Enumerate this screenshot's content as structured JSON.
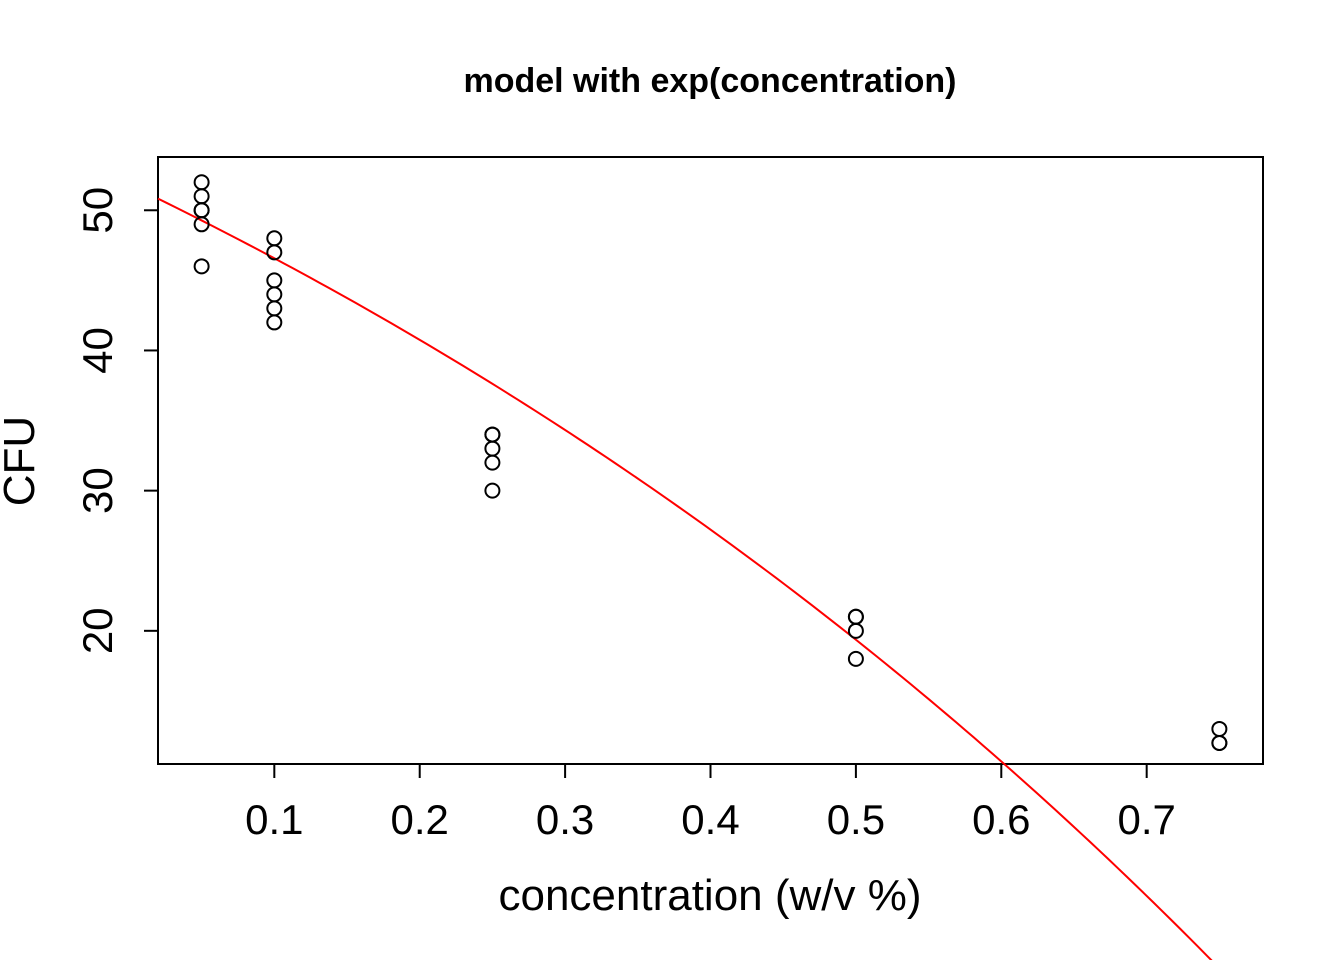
{
  "chart_data": {
    "type": "scatter",
    "title": "model with exp(concentration)",
    "xlabel": "concentration (w/v %)",
    "ylabel": "CFU",
    "xlim": [
      0.02,
      0.78
    ],
    "ylim": [
      10.5,
      53.8
    ],
    "x_ticks": [
      0.1,
      0.2,
      0.3,
      0.4,
      0.5,
      0.6,
      0.7
    ],
    "x_tick_labels": [
      "0.1",
      "0.2",
      "0.3",
      "0.4",
      "0.5",
      "0.6",
      "0.7"
    ],
    "y_ticks": [
      20,
      30,
      40,
      50
    ],
    "y_tick_labels": [
      "20",
      "30",
      "40",
      "50"
    ],
    "grid": false,
    "series": [
      {
        "type": "scatter",
        "color": "#000000",
        "points": [
          [
            0.05,
            52
          ],
          [
            0.05,
            51
          ],
          [
            0.05,
            50
          ],
          [
            0.05,
            50
          ],
          [
            0.05,
            49
          ],
          [
            0.05,
            46
          ],
          [
            0.1,
            48
          ],
          [
            0.1,
            47
          ],
          [
            0.1,
            45
          ],
          [
            0.1,
            44
          ],
          [
            0.1,
            43
          ],
          [
            0.1,
            42
          ],
          [
            0.25,
            34
          ],
          [
            0.25,
            34
          ],
          [
            0.25,
            33
          ],
          [
            0.25,
            32
          ],
          [
            0.25,
            30
          ],
          [
            0.5,
            21
          ],
          [
            0.5,
            21
          ],
          [
            0.5,
            20
          ],
          [
            0.5,
            18
          ],
          [
            0.75,
            13
          ],
          [
            0.75,
            12
          ],
          [
            0.75,
            12
          ]
        ]
      },
      {
        "type": "line",
        "color": "#ff0000",
        "model": "exp",
        "coefficients": {
          "a": 101.9,
          "b": -50.06
        },
        "x_range": [
          0.02,
          0.76
        ]
      }
    ]
  }
}
